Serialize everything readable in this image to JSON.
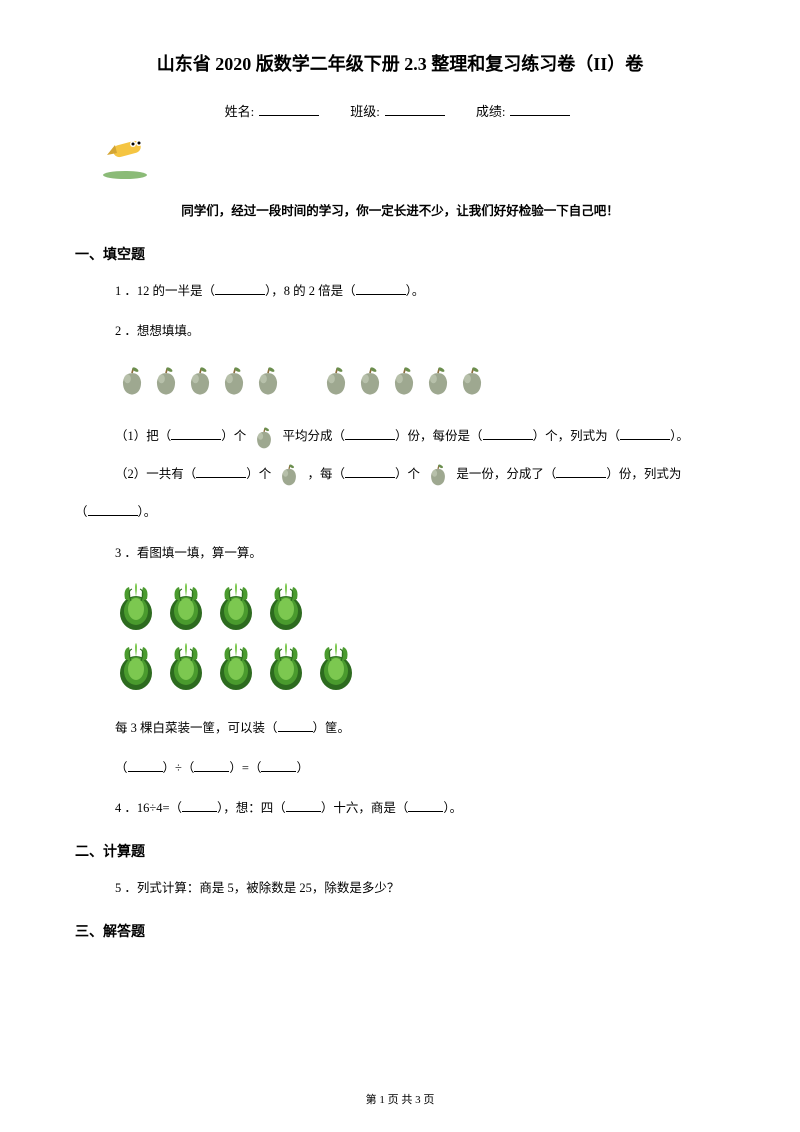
{
  "title": "山东省 2020 版数学二年级下册 2.3 整理和复习练习卷（II）卷",
  "info": {
    "name_label": "姓名:",
    "class_label": "班级:",
    "score_label": "成绩:"
  },
  "encourage": "同学们，经过一段时间的学习，你一定长进不少，让我们好好检验一下自己吧！",
  "sections": {
    "s1": "一、填空题",
    "s2": "二、计算题",
    "s3": "三、解答题"
  },
  "q1": {
    "prefix": "1 ．12 的一半是（",
    "mid": "），8 的 2 倍是（",
    "suffix": "）。"
  },
  "q2": {
    "header": "2 ．想想填填。",
    "sub1_a": "（1）把（",
    "sub1_b": "）个",
    "sub1_c": "平均分成（",
    "sub1_d": "）份，每份是（",
    "sub1_e": "）个，列式为（",
    "sub1_f": "）。",
    "sub2_a": "（2）一共有（",
    "sub2_b": "）个",
    "sub2_c": "，每（",
    "sub2_d": "）个",
    "sub2_e": "是一份，分成了（",
    "sub2_f": "）份，列式为",
    "sub2_g": "（",
    "sub2_h": "）。"
  },
  "q3": {
    "header": "3 ．看图填一填，算一算。",
    "text_a": "每 3 棵白菜装一筐，可以装（",
    "text_b": "）筐。",
    "eq_a": "（",
    "eq_b": "）÷（",
    "eq_c": "）=（",
    "eq_d": "）"
  },
  "q4": {
    "a": "4 ．16÷4=（",
    "b": "），想：四（",
    "c": "）十六，商是（",
    "d": "）。"
  },
  "q5": "5 ．列式计算：商是 5，被除数是 25，除数是多少？",
  "footer": "第 1 页 共 3 页",
  "icons": {
    "apple_count_g1": 5,
    "apple_count_g2": 5,
    "cabbage_row1": 4,
    "cabbage_row2": 5
  },
  "colors": {
    "apple_body": "#9ea890",
    "apple_highlight": "#c8d0bc",
    "apple_leaf": "#6b8e4e",
    "apple_stem": "#8b6f3e",
    "cabbage_dark": "#2d6b1f",
    "cabbage_mid": "#4a9b2e",
    "cabbage_light": "#7cc850",
    "pencil_body": "#f5c542",
    "pencil_green": "#5a9e3d"
  }
}
